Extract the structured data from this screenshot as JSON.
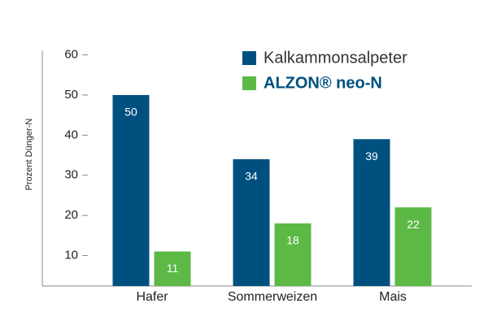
{
  "chart_data": {
    "type": "bar",
    "y_label": "Prozent Dünger-N",
    "categories": [
      "Hafer",
      "Sommerweizen",
      "Mais"
    ],
    "series": [
      {
        "name": "Kalkammonsalpeter",
        "color": "#00507f",
        "values": [
          50,
          34,
          39
        ]
      },
      {
        "name": "ALZON® neo-N",
        "color": "#5cb946",
        "values": [
          11,
          18,
          22
        ]
      }
    ],
    "ylim": [
      2.4,
      62
    ],
    "yticks": [
      10,
      20,
      30,
      40,
      50,
      60
    ],
    "legend": "top-right"
  }
}
